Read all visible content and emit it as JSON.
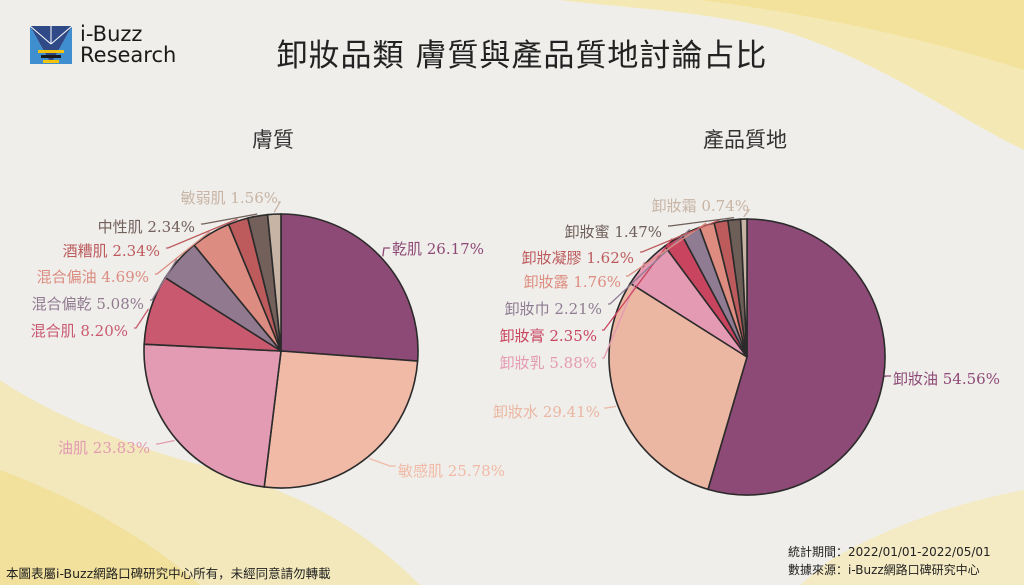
{
  "logo": {
    "line1": "i-Buzz",
    "line2": "Research"
  },
  "title": "卸妝品類 膚質與產品質地討論占比",
  "chart_data": [
    {
      "type": "pie",
      "title": "膚質",
      "slices": [
        {
          "label": "乾肌",
          "value": 26.17,
          "display": "乾肌 26.17%",
          "color": "#8e4a76"
        },
        {
          "label": "敏感肌",
          "value": 25.78,
          "display": "敏感肌 25.78%",
          "color": "#f0baa6"
        },
        {
          "label": "油肌",
          "value": 23.83,
          "display": "油肌 23.83%",
          "color": "#e39ab3"
        },
        {
          "label": "混合肌",
          "value": 8.2,
          "display": "混合肌 8.20%",
          "color": "#c9596f"
        },
        {
          "label": "混合偏乾",
          "value": 5.08,
          "display": "混合偏乾 5.08%",
          "color": "#917a90"
        },
        {
          "label": "混合偏油",
          "value": 4.69,
          "display": "混合偏油 4.69%",
          "color": "#dc8c80"
        },
        {
          "label": "酒糟肌",
          "value": 2.34,
          "display": "酒糟肌 2.34%",
          "color": "#bd5a5c"
        },
        {
          "label": "中性肌",
          "value": 2.34,
          "display": "中性肌 2.34%",
          "color": "#73605a"
        },
        {
          "label": "敏弱肌",
          "value": 1.56,
          "display": "敏弱肌 1.56%",
          "color": "#c8b4a4"
        }
      ]
    },
    {
      "type": "pie",
      "title": "產品質地",
      "slices": [
        {
          "label": "卸妝油",
          "value": 54.56,
          "display": "卸妝油 54.56%",
          "color": "#8e4a76"
        },
        {
          "label": "卸妝水",
          "value": 29.41,
          "display": "卸妝水 29.41%",
          "color": "#ebb6a2"
        },
        {
          "label": "卸妝乳",
          "value": 5.88,
          "display": "卸妝乳 5.88%",
          "color": "#e59ab3"
        },
        {
          "label": "卸妝膏",
          "value": 2.35,
          "display": "卸妝膏 2.35%",
          "color": "#c9445f"
        },
        {
          "label": "卸妝巾",
          "value": 2.21,
          "display": "卸妝巾 2.21%",
          "color": "#8f7c92"
        },
        {
          "label": "卸妝露",
          "value": 1.76,
          "display": "卸妝露 1.76%",
          "color": "#de8c7f"
        },
        {
          "label": "卸妝凝膠",
          "value": 1.62,
          "display": "卸妝凝膠 1.62%",
          "color": "#bd5a5c"
        },
        {
          "label": "卸妝蜜",
          "value": 1.47,
          "display": "卸妝蜜 1.47%",
          "color": "#6e5e58"
        },
        {
          "label": "卸妝霜",
          "value": 0.74,
          "display": "卸妝霜 0.74%",
          "color": "#c8b4a4"
        }
      ]
    }
  ],
  "footer": {
    "copyright": "本圖表屬i-Buzz網路口碑研究中心所有，未經同意請勿轉載",
    "period": "統計期間：2022/01/01-2022/05/01",
    "source": "數據來源：i-Buzz網路口碑研究中心"
  }
}
